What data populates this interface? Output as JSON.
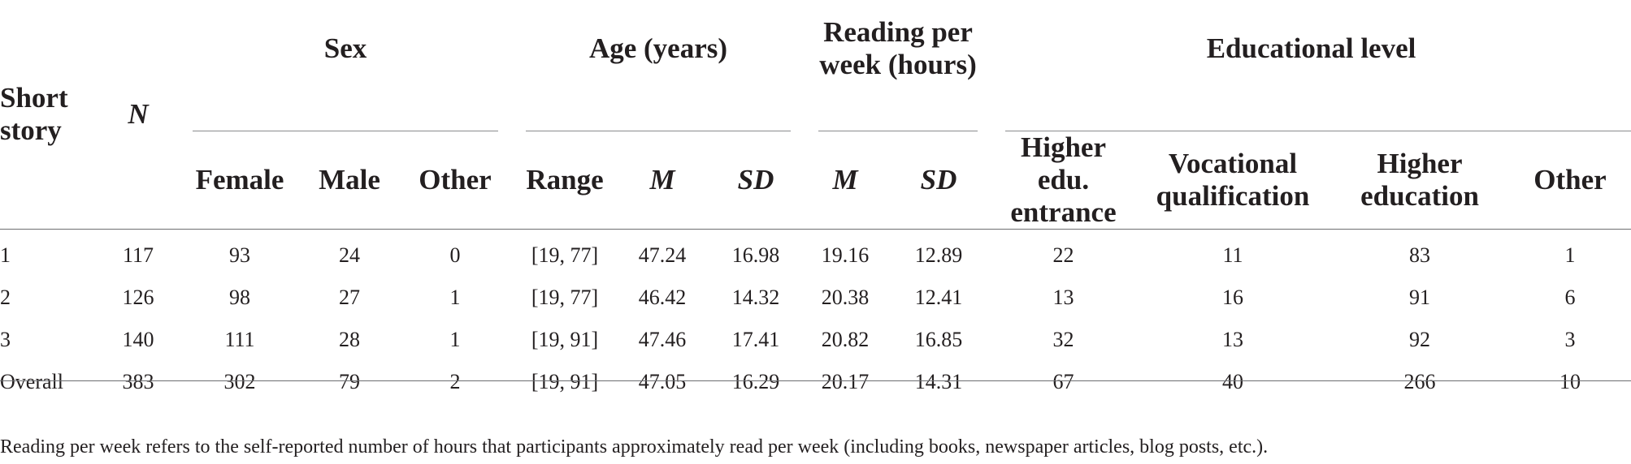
{
  "table": {
    "header": {
      "short_story": "Short story",
      "n": "N",
      "sex": {
        "title": "Sex",
        "female": "Female",
        "male": "Male",
        "other": "Other"
      },
      "age": {
        "title": "Age (years)",
        "range": "Range",
        "m": "M",
        "sd": "SD"
      },
      "reading": {
        "title": "Reading per week (hours)",
        "m": "M",
        "sd": "SD"
      },
      "education": {
        "title": "Educational level",
        "higher_entrance": "Higher edu. entrance",
        "vocational": "Vocational qualification",
        "higher_education": "Higher education",
        "other": "Other"
      }
    },
    "rows": [
      {
        "story": "1",
        "n": "117",
        "female": "93",
        "male": "24",
        "other": "0",
        "range": "[19, 77]",
        "age_m": "47.24",
        "age_sd": "16.98",
        "read_m": "19.16",
        "read_sd": "12.89",
        "edu_entrance": "22",
        "edu_vocational": "11",
        "edu_higher": "83",
        "edu_other": "1"
      },
      {
        "story": "2",
        "n": "126",
        "female": "98",
        "male": "27",
        "other": "1",
        "range": "[19, 77]",
        "age_m": "46.42",
        "age_sd": "14.32",
        "read_m": "20.38",
        "read_sd": "12.41",
        "edu_entrance": "13",
        "edu_vocational": "16",
        "edu_higher": "91",
        "edu_other": "6"
      },
      {
        "story": "3",
        "n": "140",
        "female": "111",
        "male": "28",
        "other": "1",
        "range": "[19, 91]",
        "age_m": "47.46",
        "age_sd": "17.41",
        "read_m": "20.82",
        "read_sd": "16.85",
        "edu_entrance": "32",
        "edu_vocational": "13",
        "edu_higher": "92",
        "edu_other": "3"
      },
      {
        "story": "Overall",
        "n": "383",
        "female": "302",
        "male": "79",
        "other": "2",
        "range": "[19, 91]",
        "age_m": "47.05",
        "age_sd": "16.29",
        "read_m": "20.17",
        "read_sd": "14.31",
        "edu_entrance": "67",
        "edu_vocational": "40",
        "edu_higher": "266",
        "edu_other": "10"
      }
    ]
  },
  "footnote": "Reading per week refers to the self-reported number of hours that participants approximately read per week (including books, newspaper articles, blog posts, etc.)."
}
